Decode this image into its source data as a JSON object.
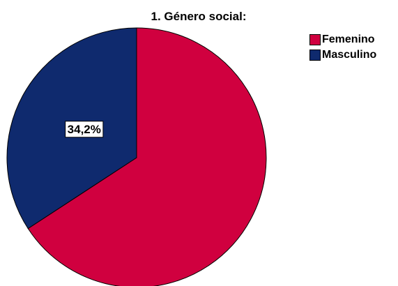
{
  "chart_data": {
    "type": "pie",
    "title": "1. Género social:",
    "slices": [
      {
        "label": "Femenino",
        "value": 65.8,
        "color": "#d0003f"
      },
      {
        "label": "Masculino",
        "value": 34.2,
        "color": "#0f2a6e",
        "data_label": "34,2%"
      }
    ],
    "legend": {
      "placement": "top-right",
      "entries": [
        "Femenino",
        "Masculino"
      ]
    }
  }
}
